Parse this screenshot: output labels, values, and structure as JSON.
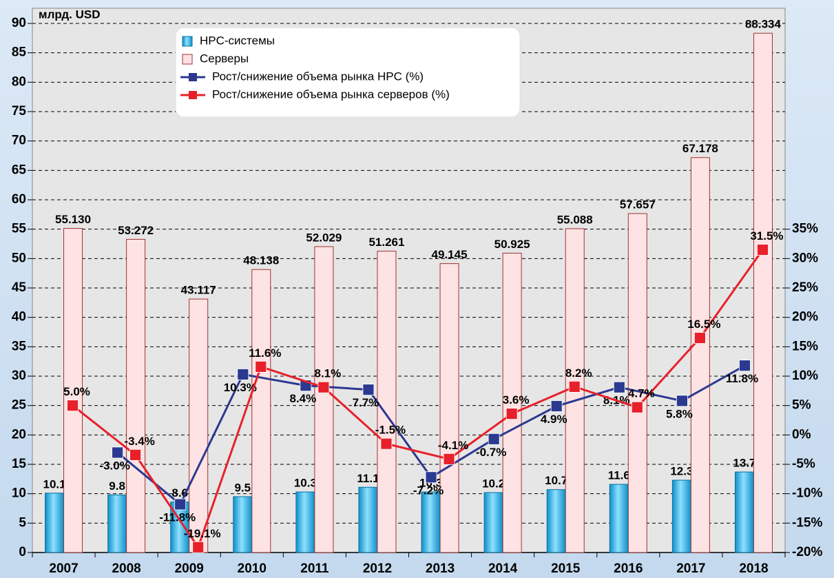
{
  "chart_data": {
    "type": "bar",
    "y_label": "млрд. USD",
    "categories": [
      "2007",
      "2008",
      "2009",
      "2010",
      "2011",
      "2012",
      "2013",
      "2014",
      "2015",
      "2016",
      "2017",
      "2018"
    ],
    "series": [
      {
        "name": "HPC-системы",
        "type": "bar",
        "color": "#22b0e6",
        "values": [
          10.1,
          9.8,
          8.6,
          9.5,
          10.3,
          11.1,
          10.3,
          10.2,
          10.7,
          11.6,
          12.3,
          13.7
        ]
      },
      {
        "name": "Серверы",
        "type": "bar",
        "color": "#fde3e3",
        "values": [
          55.13,
          53.272,
          43.117,
          48.138,
          52.029,
          51.261,
          49.145,
          50.925,
          55.088,
          57.657,
          67.178,
          88.334
        ],
        "value_labels": [
          "55.130",
          "53.272",
          "43.117",
          "48.138",
          "52.029",
          "51.261",
          "49.145",
          "50.925",
          "55.088",
          "57.657",
          "67.178",
          "88.334"
        ]
      },
      {
        "name": "Рост/снижение объема рынка HPC (%)",
        "type": "line",
        "axis": "y2",
        "color": "#2b3990",
        "values": [
          null,
          -3.0,
          -11.8,
          10.3,
          8.4,
          7.7,
          -7.2,
          -0.7,
          4.9,
          8.1,
          5.8,
          11.8
        ],
        "value_labels": [
          null,
          "-3.0%",
          "-11.8%",
          "10.3%",
          "8.4%",
          "7.7%",
          "-7.2%",
          "-0.7%",
          "4.9%",
          "8.1%",
          "5.8%",
          "11.8%"
        ]
      },
      {
        "name": "Рост/снижение объема рынка серверов (%)",
        "type": "line",
        "axis": "y2",
        "color": "#e8202a",
        "values": [
          5.0,
          -3.4,
          -19.1,
          11.6,
          8.1,
          -1.5,
          -4.1,
          3.6,
          8.2,
          4.7,
          16.5,
          31.5
        ],
        "value_labels": [
          "5.0%",
          "-3.4%",
          "-19.1%",
          "11.6%",
          "8.1%",
          "-1.5%",
          "-4.1%",
          "3.6%",
          "8.2%",
          "4.7%",
          "16.5%",
          "31.5%"
        ]
      }
    ],
    "ylim": [
      0,
      90
    ],
    "yticks": [
      0,
      5,
      10,
      15,
      20,
      25,
      30,
      35,
      40,
      45,
      50,
      55,
      60,
      65,
      70,
      75,
      80,
      85,
      90
    ],
    "y2lim": [
      -20,
      70
    ],
    "y2ticks": [
      {
        "value": -20,
        "label": "-20%"
      },
      {
        "value": -15,
        "label": "-15%"
      },
      {
        "value": -10,
        "label": "-10%"
      },
      {
        "value": -5,
        "label": "-5%"
      },
      {
        "value": 0,
        "label": "0%"
      },
      {
        "value": 5,
        "label": "5%"
      },
      {
        "value": 10,
        "label": "10%"
      },
      {
        "value": 15,
        "label": "15%"
      },
      {
        "value": 20,
        "label": "20%"
      },
      {
        "value": 25,
        "label": "25%"
      },
      {
        "value": 30,
        "label": "30%"
      },
      {
        "value": 35,
        "label": "35%"
      }
    ],
    "grid": true
  }
}
